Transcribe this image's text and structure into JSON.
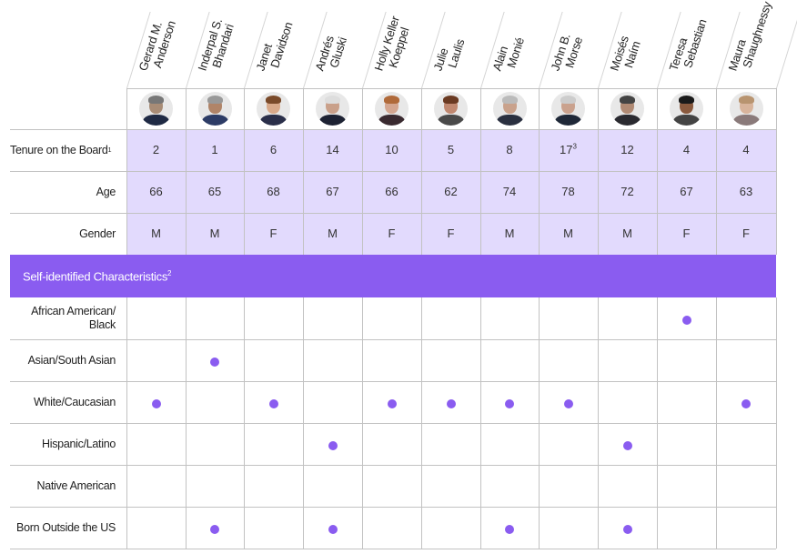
{
  "chart_data": {
    "type": "table",
    "title": "",
    "columns": [
      "Gerard M. Anderson",
      "Inderpal S. Bhandari",
      "Janet Davidson",
      "Andrés Gluski",
      "Holly Keller Koeppel",
      "Julie Laulis",
      "Alain Monié",
      "John B. Morse",
      "Moisés Naím",
      "Teresa Sebastian",
      "Maura Shaughnessy"
    ],
    "rows": [
      {
        "label": "Tenure on the Board",
        "footnote": "1",
        "values": [
          "2",
          "1",
          "6",
          "14",
          "10",
          "5",
          "8",
          "17³",
          "12",
          "4",
          "4"
        ]
      },
      {
        "label": "Age",
        "values": [
          "66",
          "65",
          "68",
          "67",
          "66",
          "62",
          "74",
          "78",
          "72",
          "67",
          "63"
        ]
      },
      {
        "label": "Gender",
        "values": [
          "M",
          "M",
          "F",
          "M",
          "F",
          "F",
          "M",
          "M",
          "M",
          "F",
          "F"
        ]
      }
    ],
    "section": {
      "label": "Self-identified Characteristics",
      "footnote": "2"
    },
    "characteristics": [
      {
        "label": "African American/ Black",
        "marks": [
          0,
          0,
          0,
          0,
          0,
          0,
          0,
          0,
          0,
          1,
          0
        ]
      },
      {
        "label": "Asian/South Asian",
        "marks": [
          0,
          1,
          0,
          0,
          0,
          0,
          0,
          0,
          0,
          0,
          0
        ]
      },
      {
        "label": "White/Caucasian",
        "marks": [
          1,
          0,
          1,
          0,
          1,
          1,
          1,
          1,
          0,
          0,
          1
        ]
      },
      {
        "label": "Hispanic/Latino",
        "marks": [
          0,
          0,
          0,
          1,
          0,
          0,
          0,
          0,
          1,
          0,
          0
        ]
      },
      {
        "label": "Native American",
        "marks": [
          0,
          0,
          0,
          0,
          0,
          0,
          0,
          0,
          0,
          0,
          0
        ]
      },
      {
        "label": "Born Outside the US",
        "marks": [
          0,
          1,
          0,
          1,
          0,
          0,
          1,
          0,
          1,
          0,
          0
        ]
      }
    ],
    "colors": {
      "accent": "#8a5cf0",
      "shade": "#e2dafd",
      "grid": "#c2c2c2"
    }
  },
  "header": {
    "names": [
      {
        "line1": "Gerard M.",
        "line2": "Anderson"
      },
      {
        "line1": "Inderpal S.",
        "line2": "Bhandari"
      },
      {
        "line1": "Janet",
        "line2": "Davidson"
      },
      {
        "line1": "Andrés",
        "line2": "Gluski"
      },
      {
        "line1": "Holly Keller",
        "line2": "Koeppel"
      },
      {
        "line1": "Julie",
        "line2": "Laulis"
      },
      {
        "line1": "Alain",
        "line2": "Monié"
      },
      {
        "line1": "John B.",
        "line2": "Morse"
      },
      {
        "line1": "Moisés",
        "line2": "Naím"
      },
      {
        "line1": "Teresa",
        "line2": "Sebastian"
      },
      {
        "line1": "Maura",
        "line2": "Shaughnessy"
      }
    ]
  },
  "rows": {
    "tenure": {
      "label": "Tenure on the Board",
      "sup": "1",
      "values": [
        "2",
        "1",
        "6",
        "14",
        "10",
        "5",
        "8",
        "17",
        "12",
        "4",
        "4"
      ],
      "sups": [
        "",
        "",
        "",
        "",
        "",
        "",
        "",
        "3",
        "",
        "",
        ""
      ]
    },
    "age": {
      "label": "Age",
      "values": [
        "66",
        "65",
        "68",
        "67",
        "66",
        "62",
        "74",
        "78",
        "72",
        "67",
        "63"
      ]
    },
    "gender": {
      "label": "Gender",
      "values": [
        "M",
        "M",
        "F",
        "M",
        "F",
        "F",
        "M",
        "M",
        "M",
        "F",
        "F"
      ]
    }
  },
  "section": {
    "label": "Self-identified Characteristics",
    "sup": "2"
  },
  "characteristics": {
    "labels": [
      "African American/",
      "Black",
      "Asian/South Asian",
      "White/Caucasian",
      "Hispanic/Latino",
      "Native American",
      "Born Outside the US"
    ]
  }
}
